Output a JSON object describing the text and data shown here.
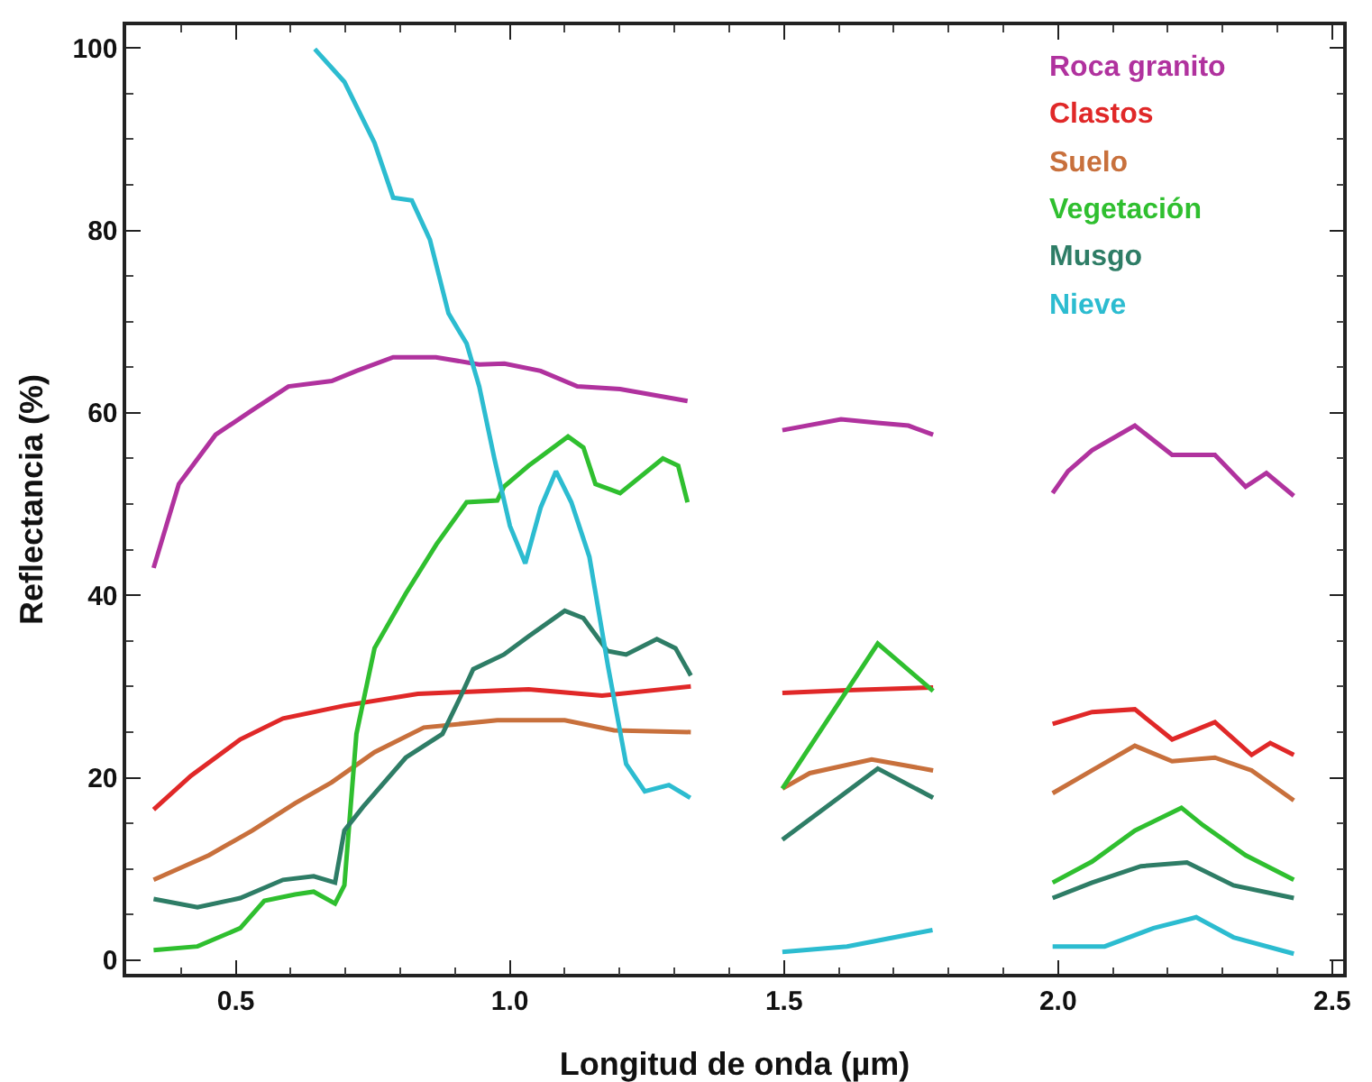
{
  "chart_data": {
    "type": "line",
    "xlabel": "Longitud de onda (µm)",
    "ylabel": "Reflectancia (%)",
    "xlim": [
      0.3,
      2.52
    ],
    "ylim": [
      -1.5,
      102.5
    ],
    "xticks": [
      0.5,
      {
        "value": 1,
        "label": "1.0"
      },
      1.5,
      {
        "value": 2,
        "label": "2.0"
      },
      2.5
    ],
    "yticks": [
      0,
      20,
      40,
      60,
      80,
      100
    ],
    "grid": false,
    "legend": "top right",
    "marker": "none",
    "line_style": "solid",
    "series": [
      {
        "name": "Roca granito",
        "color": "#b0329e",
        "x": [
          0.35,
          0.396,
          0.463,
          0.53,
          0.596,
          0.675,
          0.72,
          0.787,
          0.865,
          0.944,
          0.99,
          1.056,
          1.123,
          1.201,
          1.324,
          1.4,
          1.497,
          1.604,
          1.671,
          1.727,
          1.772,
          1.88,
          1.99,
          2.018,
          2.062,
          2.14,
          2.208,
          2.286,
          2.342,
          2.38,
          2.43
        ],
        "values": [
          43,
          52.2,
          57.6,
          60.3,
          62.9,
          63.5,
          64.6,
          66.1,
          66.1,
          65.3,
          65.4,
          64.6,
          62.9,
          62.6,
          61.3,
          null,
          58.1,
          59.3,
          58.9,
          58.6,
          57.6,
          null,
          51.2,
          53.6,
          55.9,
          58.6,
          55.4,
          55.4,
          51.9,
          53.4,
          50.9
        ]
      },
      {
        "name": "Clastos",
        "color": "#e02828",
        "x": [
          0.35,
          0.418,
          0.508,
          0.586,
          0.698,
          0.832,
          1.034,
          1.168,
          1.33,
          1.4,
          1.497,
          1.615,
          1.772,
          1.88,
          1.99,
          2.062,
          2.14,
          2.208,
          2.286,
          2.353,
          2.387,
          2.43
        ],
        "values": [
          16.5,
          20.2,
          24.2,
          26.5,
          27.9,
          29.2,
          29.7,
          29,
          30,
          null,
          29.3,
          29.6,
          29.9,
          null,
          25.9,
          27.2,
          27.5,
          24.2,
          26.1,
          22.5,
          23.8,
          22.5
        ]
      },
      {
        "name": "Suelo",
        "color": "#c8703c",
        "x": [
          0.35,
          0.451,
          0.53,
          0.608,
          0.675,
          0.753,
          0.843,
          0.977,
          1.1,
          1.19,
          1.33,
          1.4,
          1.497,
          1.547,
          1.66,
          1.772,
          1.88,
          1.99,
          2.062,
          2.14,
          2.208,
          2.286,
          2.353,
          2.43
        ],
        "values": [
          8.8,
          11.5,
          14.2,
          17.2,
          19.5,
          22.8,
          25.5,
          26.3,
          26.3,
          25.2,
          25,
          null,
          18.8,
          20.5,
          22,
          20.8,
          null,
          18.3,
          20.8,
          23.5,
          21.8,
          22.2,
          20.8,
          17.5
        ]
      },
      {
        "name": "Vegetación",
        "color": "#2fbf2f",
        "x": [
          0.35,
          0.43,
          0.508,
          0.552,
          0.608,
          0.642,
          0.681,
          0.698,
          0.72,
          0.753,
          0.81,
          0.866,
          0.921,
          0.977,
          0.989,
          1.034,
          1.106,
          1.134,
          1.156,
          1.201,
          1.279,
          1.307,
          1.324,
          1.4,
          1.497,
          1.671,
          1.772,
          1.88,
          1.99,
          2.062,
          2.14,
          2.225,
          2.264,
          2.342,
          2.43
        ],
        "values": [
          1.1,
          1.5,
          3.5,
          6.5,
          7.2,
          7.5,
          6.2,
          8.2,
          24.8,
          34.2,
          40.2,
          45.6,
          50.2,
          50.4,
          51.9,
          54.2,
          57.4,
          56.2,
          52.2,
          51.2,
          55,
          54.2,
          50.2,
          null,
          18.8,
          34.7,
          29.5,
          null,
          8.5,
          10.8,
          14.2,
          16.7,
          14.8,
          11.5,
          8.8
        ]
      },
      {
        "name": "Musgo",
        "color": "#2e7d66",
        "x": [
          0.35,
          0.43,
          0.508,
          0.586,
          0.642,
          0.681,
          0.698,
          0.732,
          0.81,
          0.877,
          0.91,
          0.933,
          0.989,
          1.034,
          1.1,
          1.134,
          1.178,
          1.212,
          1.268,
          1.302,
          1.33,
          1.4,
          1.497,
          1.671,
          1.772,
          1.88,
          1.99,
          2.062,
          2.151,
          2.235,
          2.32,
          2.43
        ],
        "values": [
          6.7,
          5.8,
          6.8,
          8.8,
          9.2,
          8.5,
          14.2,
          16.8,
          22.2,
          24.8,
          28.9,
          31.9,
          33.5,
          35.5,
          38.3,
          37.5,
          33.9,
          33.5,
          35.2,
          34.2,
          31.2,
          null,
          13.2,
          21,
          17.8,
          null,
          6.8,
          8.5,
          10.3,
          10.7,
          8.2,
          6.8
        ]
      },
      {
        "name": "Nieve",
        "color": "#2cbcd0",
        "x": [
          0.644,
          0.698,
          0.753,
          0.787,
          0.821,
          0.854,
          0.888,
          0.921,
          0.944,
          0.972,
          1.0,
          1.028,
          1.056,
          1.084,
          1.112,
          1.145,
          1.179,
          1.212,
          1.246,
          1.29,
          1.329,
          1.4,
          1.497,
          1.615,
          1.771,
          1.88,
          1.99,
          2.085,
          2.174,
          2.252,
          2.32,
          2.43
        ],
        "values": [
          99.9,
          96.3,
          89.6,
          83.6,
          83.3,
          79,
          70.9,
          67.6,
          62.9,
          54.9,
          47.6,
          43.5,
          49.6,
          53.6,
          50.2,
          44.2,
          32.2,
          21.5,
          18.5,
          19.2,
          17.8,
          null,
          0.9,
          1.5,
          3.3,
          null,
          1.5,
          1.5,
          3.5,
          4.7,
          2.5,
          0.7
        ]
      }
    ]
  }
}
